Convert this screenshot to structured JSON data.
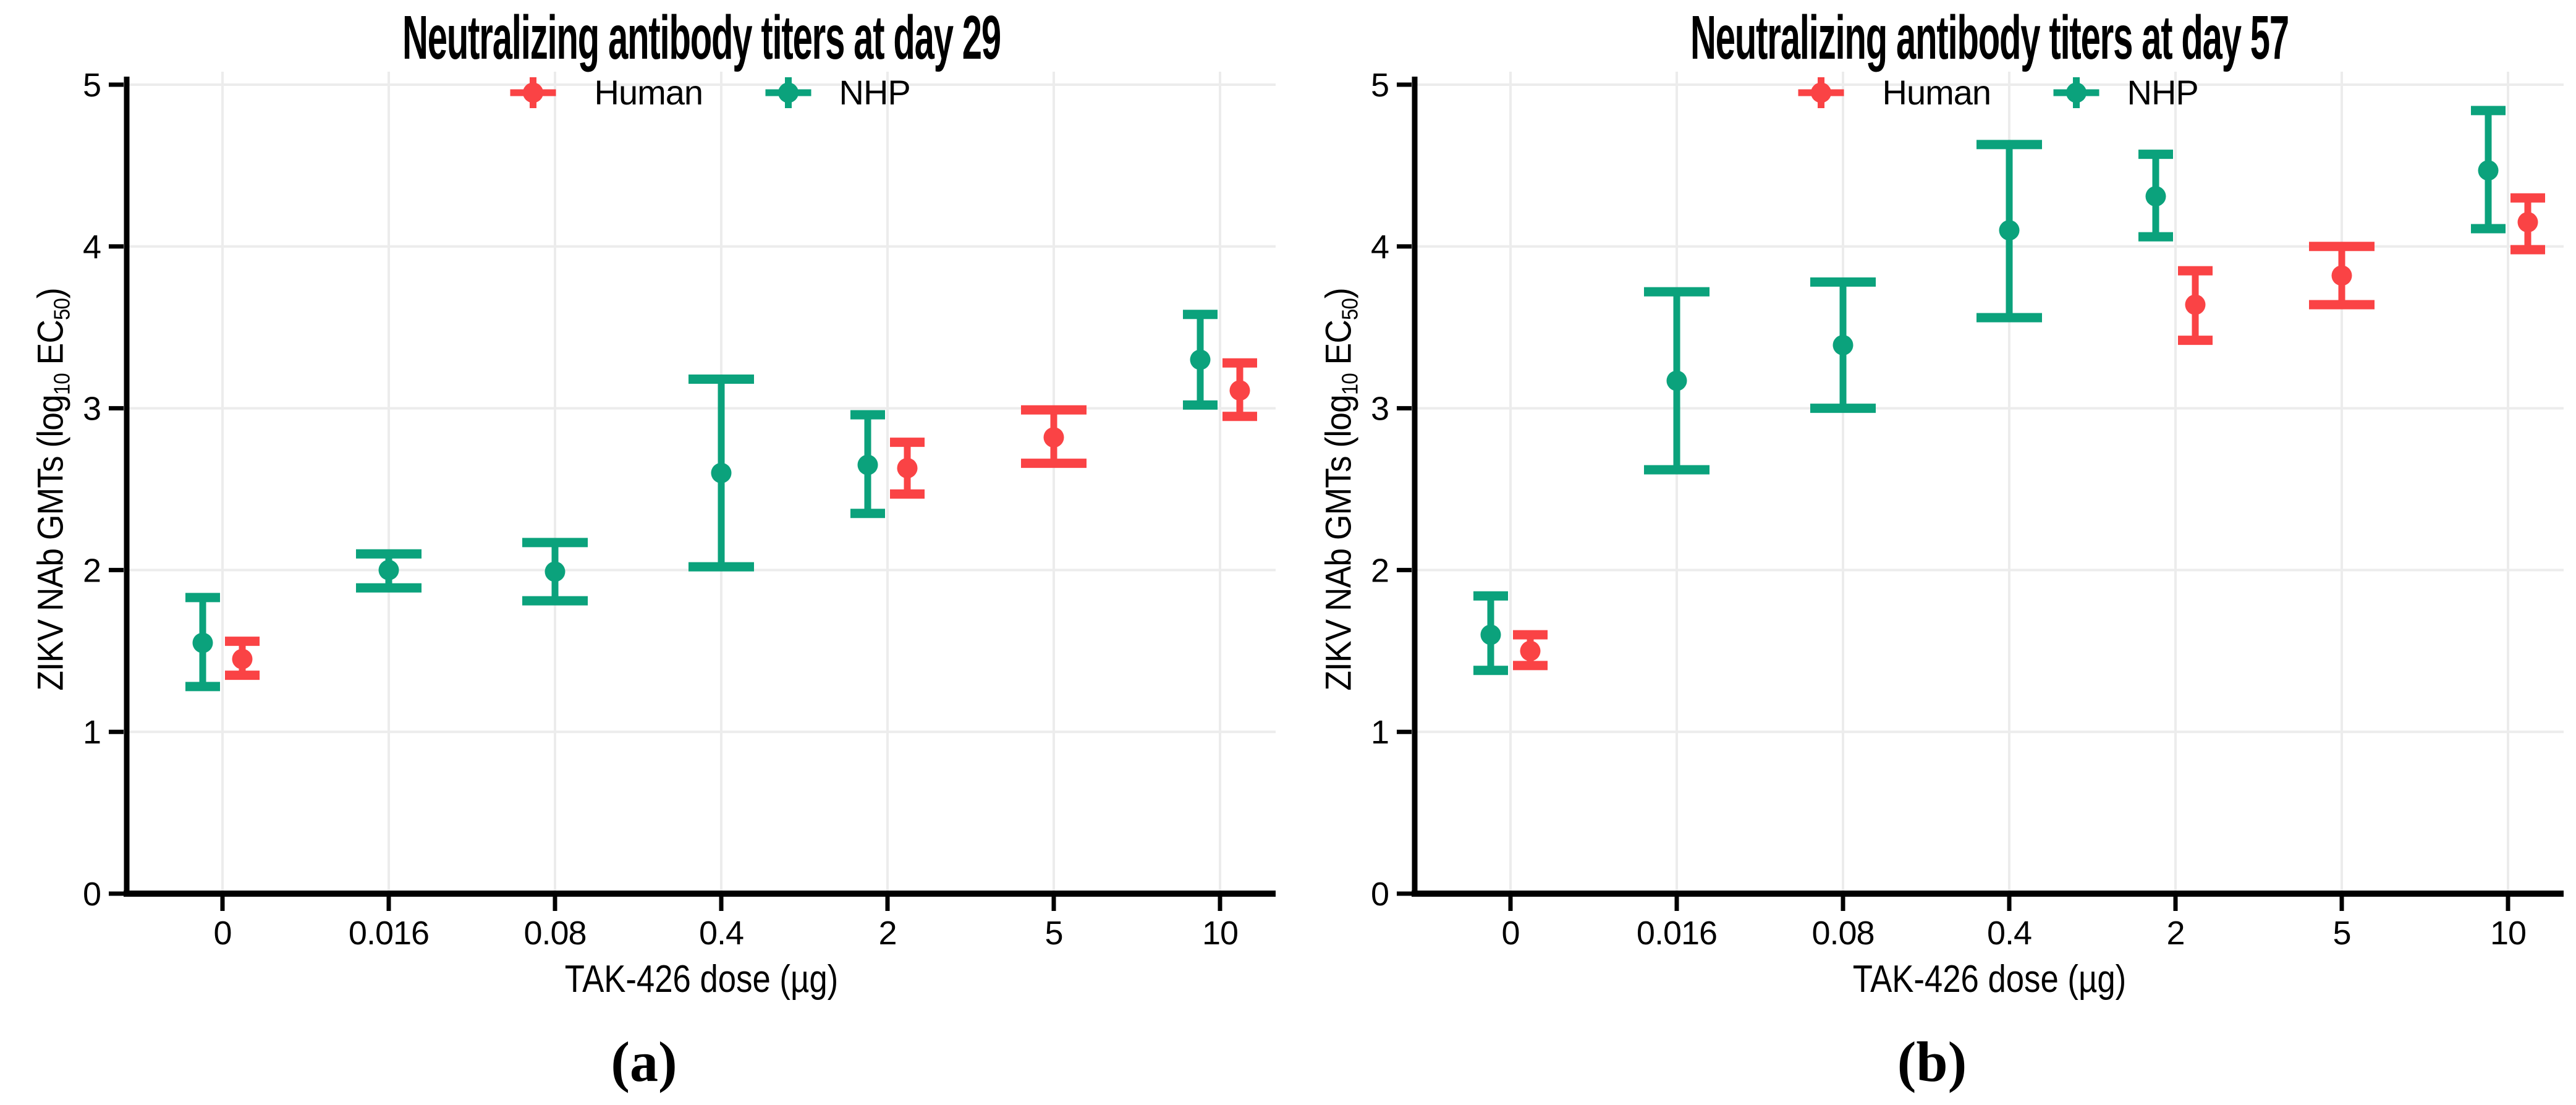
{
  "style": {
    "human_color": "#fa4345",
    "nhp_color": "#0ba27c",
    "grid_color": "#ececec",
    "axis_color": "#000000",
    "text_color": "#000000",
    "background": "#ffffff"
  },
  "ylabel_parts": {
    "prefix": "ZIKV NAb GMTs (log",
    "sub1": "10",
    "mid": " EC",
    "sub2": "50",
    "suffix": ")"
  },
  "chart_data": [
    {
      "type": "scatter",
      "subtype": "point-with-errorbars",
      "panel_label": "(a)",
      "title": "Neutralizing antibody titers at day 29",
      "xlabel": "TAK-426 dose (µg)",
      "ylabel": "ZIKV NAb GMTs (log10 EC50)",
      "categories": [
        "0",
        "0.016",
        "0.08",
        "0.4",
        "2",
        "5",
        "10"
      ],
      "ylim": [
        0,
        5
      ],
      "yticks": [
        0,
        1,
        2,
        3,
        4,
        5
      ],
      "grid": true,
      "legend_position": "top-center",
      "series": [
        {
          "name": "Human",
          "color": "#fa4345",
          "points": [
            {
              "dose": "0",
              "y": 1.45,
              "lo": 1.35,
              "hi": 1.56
            },
            {
              "dose": "2",
              "y": 2.63,
              "lo": 2.47,
              "hi": 2.79
            },
            {
              "dose": "5",
              "y": 2.82,
              "lo": 2.66,
              "hi": 2.99
            },
            {
              "dose": "10",
              "y": 3.11,
              "lo": 2.95,
              "hi": 3.28
            }
          ]
        },
        {
          "name": "NHP",
          "color": "#0ba27c",
          "points": [
            {
              "dose": "0",
              "y": 1.55,
              "lo": 1.28,
              "hi": 1.83
            },
            {
              "dose": "0.016",
              "y": 2.0,
              "lo": 1.89,
              "hi": 2.1
            },
            {
              "dose": "0.08",
              "y": 1.99,
              "lo": 1.81,
              "hi": 2.17
            },
            {
              "dose": "0.4",
              "y": 2.6,
              "lo": 2.02,
              "hi": 3.18
            },
            {
              "dose": "2",
              "y": 2.65,
              "lo": 2.35,
              "hi": 2.96
            },
            {
              "dose": "10",
              "y": 3.3,
              "lo": 3.02,
              "hi": 3.58
            }
          ]
        }
      ]
    },
    {
      "type": "scatter",
      "subtype": "point-with-errorbars",
      "panel_label": "(b)",
      "title": "Neutralizing antibody titers at day 57",
      "xlabel": "TAK-426 dose (µg)",
      "ylabel": "ZIKV NAb GMTs (log10 EC50)",
      "categories": [
        "0",
        "0.016",
        "0.08",
        "0.4",
        "2",
        "5",
        "10"
      ],
      "ylim": [
        0,
        5
      ],
      "yticks": [
        0,
        1,
        2,
        3,
        4,
        5
      ],
      "grid": true,
      "legend_position": "top-center",
      "series": [
        {
          "name": "Human",
          "color": "#fa4345",
          "points": [
            {
              "dose": "0",
              "y": 1.5,
              "lo": 1.41,
              "hi": 1.6
            },
            {
              "dose": "2",
              "y": 3.64,
              "lo": 3.42,
              "hi": 3.85
            },
            {
              "dose": "5",
              "y": 3.82,
              "lo": 3.64,
              "hi": 4.0
            },
            {
              "dose": "10",
              "y": 4.15,
              "lo": 3.98,
              "hi": 4.3
            }
          ]
        },
        {
          "name": "NHP",
          "color": "#0ba27c",
          "points": [
            {
              "dose": "0",
              "y": 1.6,
              "lo": 1.38,
              "hi": 1.84
            },
            {
              "dose": "0.016",
              "y": 3.17,
              "lo": 2.62,
              "hi": 3.72
            },
            {
              "dose": "0.08",
              "y": 3.39,
              "lo": 3.0,
              "hi": 3.78
            },
            {
              "dose": "0.4",
              "y": 4.1,
              "lo": 3.56,
              "hi": 4.63
            },
            {
              "dose": "2",
              "y": 4.31,
              "lo": 4.06,
              "hi": 4.57
            },
            {
              "dose": "10",
              "y": 4.47,
              "lo": 4.11,
              "hi": 4.84
            }
          ]
        }
      ]
    }
  ]
}
